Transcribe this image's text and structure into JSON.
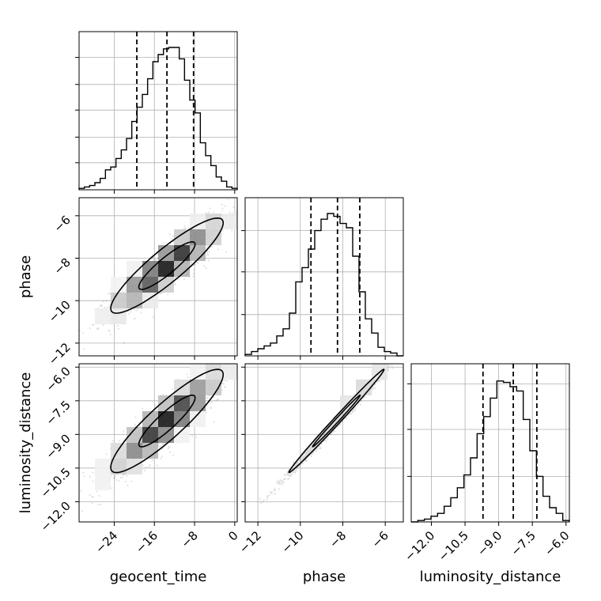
{
  "chart_data": {
    "type": "corner",
    "parameters": [
      {
        "key": "geocent_time",
        "label": "geocent_time",
        "range": [
          -31,
          0.5
        ],
        "ticks": [
          -24,
          -16,
          -8,
          0
        ]
      },
      {
        "key": "phase",
        "label": "phase",
        "range": [
          -12.6,
          -5.15
        ],
        "ticks": [
          -12,
          -10,
          -8,
          -6
        ]
      },
      {
        "key": "luminosity_distance",
        "label": "luminosity_distance",
        "range": [
          -12.9,
          -5.85
        ],
        "ticks": [
          -12.0,
          -10.5,
          -9.0,
          -7.5,
          -6.0
        ]
      }
    ],
    "tick_labels": {
      "geocent_time": [
        "−24",
        "−16",
        "−8",
        "0"
      ],
      "phase": [
        "−12",
        "−10",
        "−8",
        "−6"
      ],
      "luminosity_distance": [
        "−12.0",
        "−10.5",
        "−9.0",
        "−7.5",
        "−6.0"
      ]
    },
    "quantiles": {
      "geocent_time": [
        -19.5,
        -13.5,
        -8.2
      ],
      "phase": [
        -9.5,
        -8.25,
        -7.2
      ],
      "luminosity_distance": [
        -9.7,
        -8.35,
        -7.3
      ]
    },
    "histograms": {
      "geocent_time": [
        0.01,
        0.02,
        0.03,
        0.05,
        0.08,
        0.14,
        0.16,
        0.22,
        0.28,
        0.36,
        0.48,
        0.58,
        0.67,
        0.78,
        0.9,
        0.95,
        0.99,
        1.0,
        1.0,
        0.92,
        0.77,
        0.63,
        0.54,
        0.33,
        0.24,
        0.17,
        0.09,
        0.06,
        0.02,
        0.01
      ],
      "phase": [
        0.01,
        0.03,
        0.05,
        0.07,
        0.09,
        0.14,
        0.19,
        0.3,
        0.52,
        0.62,
        0.75,
        0.88,
        0.96,
        1.0,
        0.98,
        0.93,
        0.9,
        0.7,
        0.45,
        0.26,
        0.16,
        0.06,
        0.03,
        0.02,
        0.0
      ],
      "luminosity_distance": [
        0.0,
        0.01,
        0.02,
        0.04,
        0.06,
        0.11,
        0.17,
        0.24,
        0.33,
        0.45,
        0.62,
        0.74,
        0.87,
        0.99,
        0.98,
        0.95,
        0.92,
        0.72,
        0.5,
        0.32,
        0.18,
        0.1,
        0.06,
        0.01
      ]
    },
    "histogram_ticks": {
      "geocent_time": [
        0.19,
        0.37,
        0.56,
        0.74,
        0.93
      ],
      "phase": [
        0.29,
        0.59,
        0.88
      ],
      "luminosity_distance": [
        0.32,
        0.65,
        0.97
      ]
    },
    "pairs": [
      {
        "x": "geocent_time",
        "y": "phase",
        "mean": [
          -13.5,
          -8.35
        ],
        "sd": [
          5.6,
          1.12
        ],
        "rho": 0.9
      },
      {
        "x": "geocent_time",
        "y": "luminosity_distance",
        "mean": [
          -13.5,
          -8.4
        ],
        "sd": [
          5.6,
          1.15
        ],
        "rho": 0.9
      },
      {
        "x": "phase",
        "y": "luminosity_distance",
        "mean": [
          -8.3,
          -8.4
        ],
        "sd": [
          1.12,
          1.15
        ],
        "rho": 0.995
      }
    ],
    "contour_levels": [
      "1-sigma",
      "2-sigma"
    ],
    "grid": true,
    "colors": {
      "line": "#000000",
      "sample": "#4d4d4d",
      "grid": "#b0b0b0",
      "spine": "#000000"
    }
  }
}
